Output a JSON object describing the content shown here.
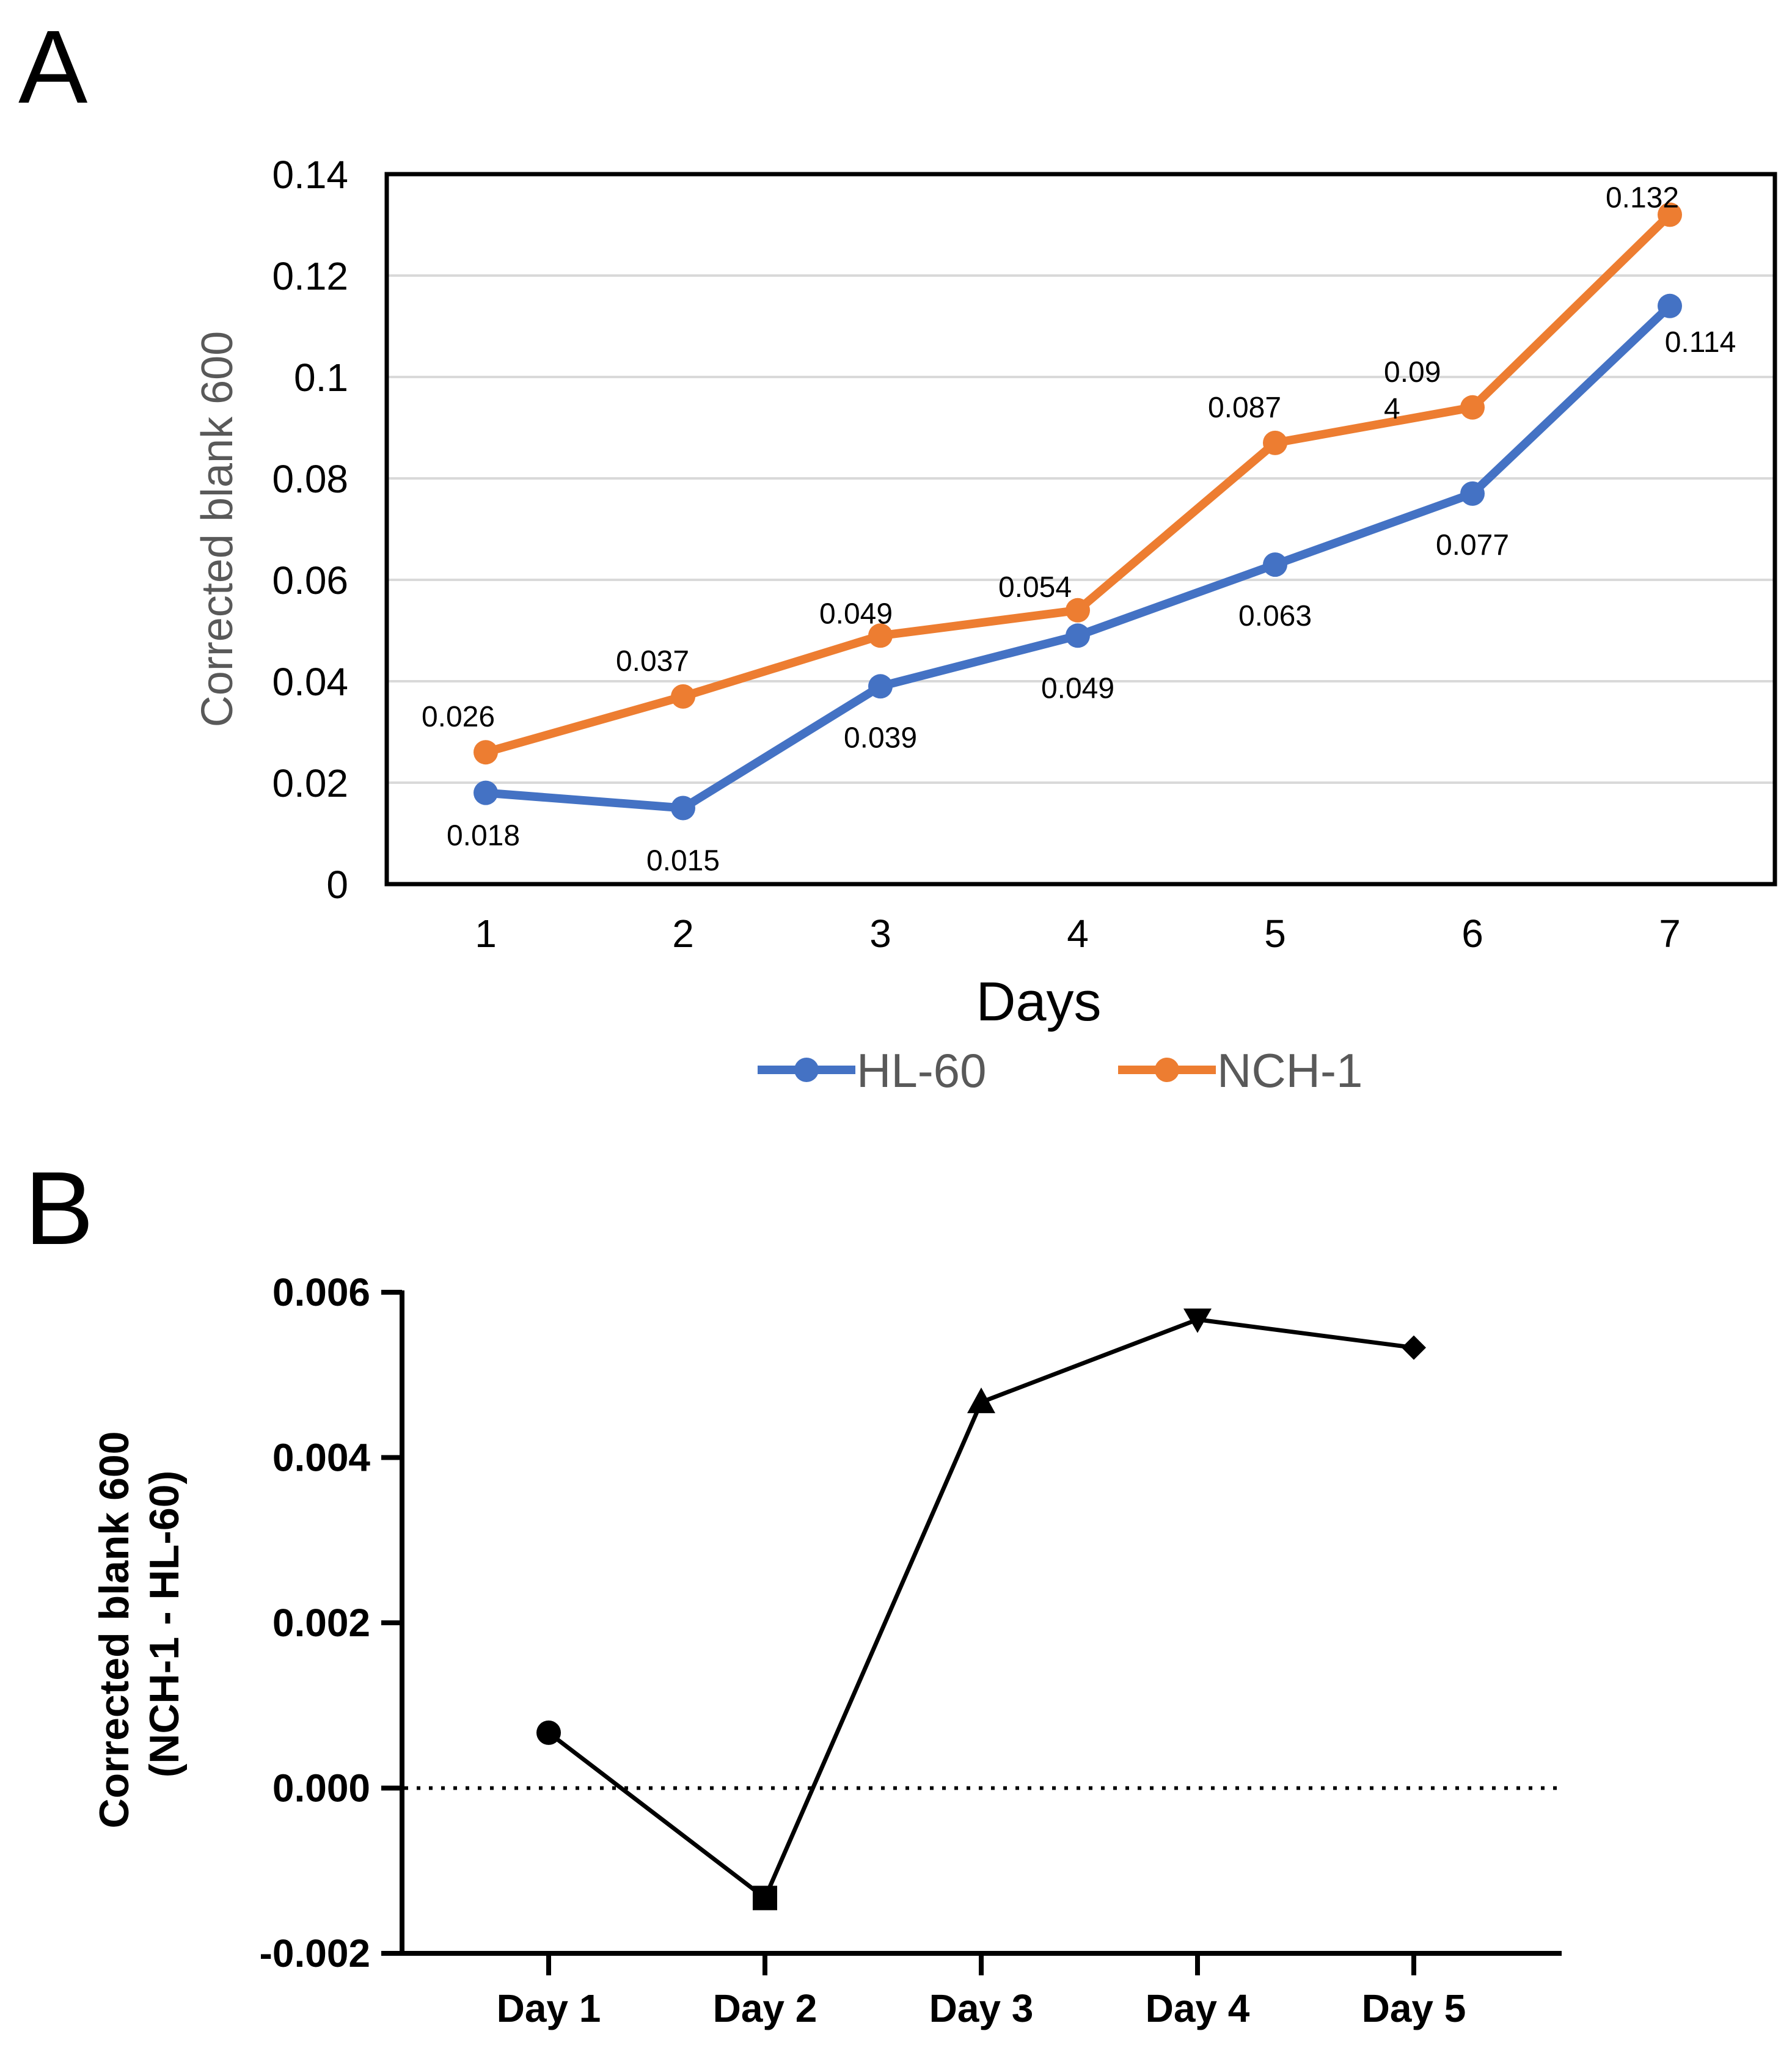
{
  "chart_data": [
    {
      "panel": "A",
      "type": "line",
      "categories": [
        "1",
        "2",
        "3",
        "4",
        "5",
        "6",
        "7"
      ],
      "series": [
        {
          "name": "HL-60",
          "color": "#4472C4",
          "values": [
            0.018,
            0.015,
            0.039,
            0.049,
            0.063,
            0.077,
            0.114
          ],
          "labels": [
            "0.018",
            "0.015",
            "0.039",
            "0.049",
            "0.063",
            "0.077",
            "0.114"
          ]
        },
        {
          "name": "NCH-1",
          "color": "#ED7D31",
          "values": [
            0.026,
            0.037,
            0.049,
            0.054,
            0.087,
            0.094,
            0.132
          ],
          "labels": [
            "0.026",
            "0.037",
            "0.049",
            "0.054",
            "0.087",
            "0.09\n4",
            "0.132"
          ]
        }
      ],
      "xlabel": "Days",
      "ylabel": "Corrected blank 600",
      "ylim": [
        0,
        0.14
      ],
      "yticks": [
        "0",
        "0.02",
        "0.04",
        "0.06",
        "0.08",
        "0.1",
        "0.12",
        "0.14"
      ],
      "grid": true,
      "legend": "bottom"
    },
    {
      "panel": "B",
      "type": "line",
      "categories": [
        "Day 1",
        "Day 2",
        "Day 3",
        "Day 4",
        "Day 5"
      ],
      "series": [
        {
          "name": "NCH-1 - HL-60",
          "color": "#000000",
          "values": [
            0.00067,
            -0.00133,
            0.00467,
            0.00567,
            0.00533
          ],
          "markers": [
            "circle",
            "square",
            "triangle-up",
            "triangle-down",
            "diamond"
          ]
        }
      ],
      "ylabel": [
        "Corrected blank 600",
        "(NCH-1 - HL-60)"
      ],
      "ylim": [
        -0.002,
        0.006
      ],
      "yticks": [
        "-0.002",
        "0.000",
        "0.002",
        "0.004",
        "0.006"
      ],
      "reference_line": 0,
      "grid": false
    }
  ]
}
